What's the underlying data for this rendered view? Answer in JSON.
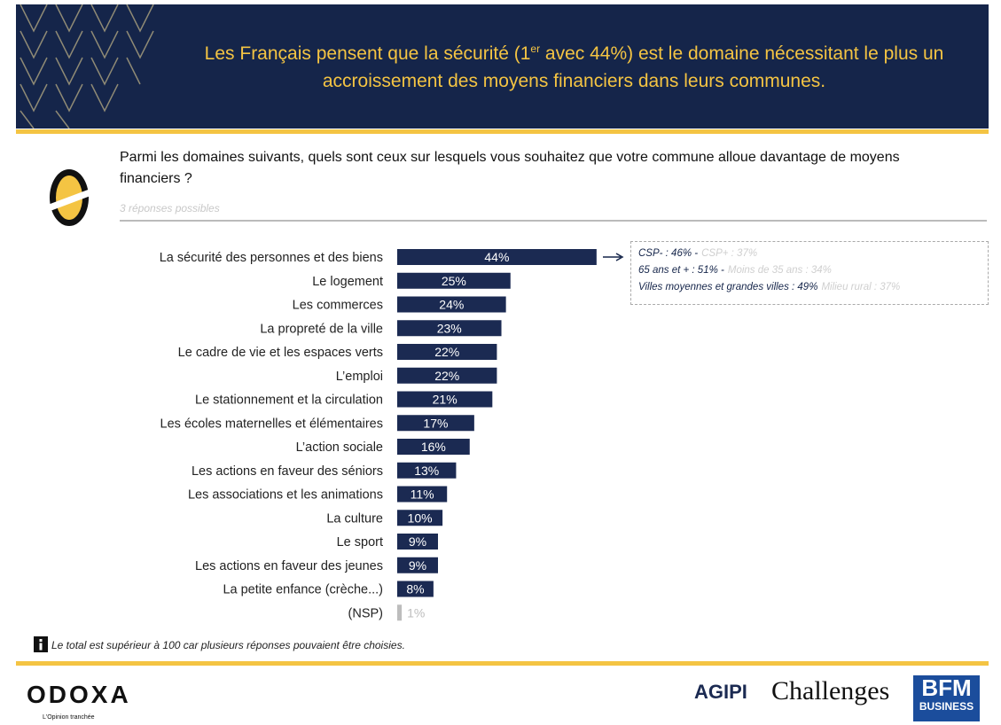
{
  "chart_data": {
    "type": "bar",
    "orientation": "horizontal",
    "title": {
      "before": "Les Français pensent que la sécurité (1",
      "sup": "er",
      "after": " avec 44%) est le domaine nécessitant le plus un accroissement des moyens financiers dans leurs communes."
    },
    "question": "Parmi les domaines suivants, quels sont ceux sur lesquels vous souhaitez que votre commune alloue davantage de moyens financiers ?",
    "subtitle": "3 réponses possibles",
    "categories": [
      "La sécurité des personnes et des biens",
      "Le logement",
      "Les commerces",
      "La propreté de la ville",
      "Le cadre de vie et les espaces verts",
      "L’emploi",
      "Le stationnement et la circulation",
      "Les écoles maternelles et élémentaires",
      "L’action sociale",
      "Les actions en faveur des séniors",
      "Les associations et les animations",
      "La culture",
      "Le sport",
      "Les actions en faveur des jeunes",
      "La petite enfance (crèche...)",
      "(NSP)"
    ],
    "values": [
      44,
      25,
      24,
      23,
      22,
      22,
      21,
      17,
      16,
      13,
      11,
      10,
      9,
      9,
      8,
      1
    ],
    "value_labels": [
      "44%",
      "25%",
      "24%",
      "23%",
      "22%",
      "22%",
      "21%",
      "17%",
      "16%",
      "13%",
      "11%",
      "10%",
      "9%",
      "9%",
      "8%",
      "1%"
    ],
    "colors": [
      "#1b2a52",
      "#1b2a52",
      "#1b2a52",
      "#1b2a52",
      "#1b2a52",
      "#1b2a52",
      "#1b2a52",
      "#1b2a52",
      "#1b2a52",
      "#1b2a52",
      "#1b2a52",
      "#1b2a52",
      "#1b2a52",
      "#1b2a52",
      "#1b2a52",
      "#bdbdbd"
    ],
    "annotation": [
      {
        "main": "CSP- : 46% -",
        "other": "CSP+ : 37%"
      },
      {
        "main": "65 ans et + : 51% -",
        "other": "Moins de 35 ans : 34%"
      },
      {
        "main": "Villes moyennes et grandes villes : 49%",
        "other": "Milieu rural : 37%"
      }
    ],
    "note": "Le total est supérieur à 100 car plusieurs réponses pouvaient être choisies.",
    "logos": {
      "odoxa": "ODOXA",
      "odoxa_tagline": "L'Opinion tranchée",
      "agipi": "AGIPI",
      "challenges": "Challenges",
      "bfm": "BFM",
      "bfm_sub": "BUSINESS"
    }
  }
}
